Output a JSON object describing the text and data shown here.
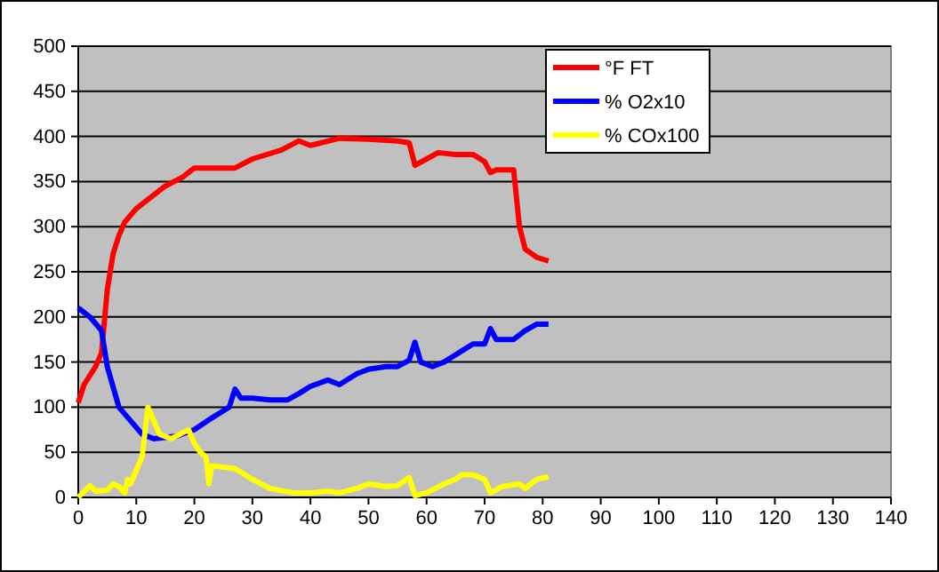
{
  "chart_data": {
    "type": "line",
    "xlim": [
      0,
      140
    ],
    "xticks": [
      0,
      10,
      20,
      30,
      40,
      50,
      60,
      70,
      80,
      90,
      100,
      110,
      120,
      130,
      140
    ],
    "ylim": [
      0,
      500
    ],
    "yticks": [
      0,
      50,
      100,
      150,
      200,
      250,
      300,
      350,
      400,
      450,
      500
    ],
    "grid": "y",
    "legend": "top",
    "marker": "none",
    "line_style": "solid",
    "series": [
      {
        "name": "°F FT",
        "color": "#ff0000",
        "x": [
          0,
          1,
          3,
          4,
          5,
          6,
          7,
          8,
          10,
          12,
          15,
          18,
          20,
          25,
          27,
          30,
          35,
          38,
          40,
          45,
          50,
          55,
          57,
          58,
          60,
          62,
          65,
          68,
          70,
          71,
          72,
          75,
          76,
          77,
          79,
          81
        ],
        "values": [
          105,
          125,
          145,
          160,
          230,
          270,
          290,
          305,
          320,
          330,
          345,
          355,
          365,
          365,
          365,
          375,
          385,
          395,
          390,
          398,
          397,
          395,
          393,
          368,
          375,
          382,
          380,
          380,
          372,
          360,
          363,
          363,
          300,
          275,
          266,
          262
        ]
      },
      {
        "name": "% O2x10",
        "color": "#0000ff",
        "x": [
          0,
          2,
          4,
          5,
          7,
          9,
          11,
          13,
          17,
          20,
          23,
          26,
          27,
          28,
          30,
          33,
          36,
          38,
          40,
          43,
          45,
          48,
          50,
          53,
          55,
          57,
          58,
          59,
          61,
          63,
          66,
          68,
          70,
          71,
          72,
          75,
          77,
          79,
          81
        ],
        "values": [
          210,
          200,
          185,
          145,
          100,
          85,
          70,
          65,
          68,
          75,
          88,
          100,
          120,
          110,
          110,
          108,
          108,
          115,
          123,
          130,
          125,
          137,
          142,
          145,
          145,
          152,
          172,
          150,
          145,
          150,
          162,
          170,
          170,
          187,
          175,
          175,
          185,
          192,
          192
        ]
      },
      {
        "name": "% COx100",
        "color": "#ffff00",
        "x": [
          0,
          2,
          3,
          5,
          6,
          7,
          8,
          8.5,
          9,
          10,
          11,
          12,
          13,
          14,
          16,
          19,
          20,
          21,
          22,
          22.5,
          23,
          27,
          28,
          30,
          33,
          37,
          40,
          43,
          45,
          48,
          50,
          53,
          55,
          57,
          58,
          60,
          63,
          65,
          66,
          68,
          70,
          71,
          73,
          76,
          77,
          79,
          81
        ],
        "values": [
          0,
          13,
          7,
          8,
          15,
          12,
          5,
          20,
          15,
          30,
          45,
          100,
          85,
          70,
          65,
          75,
          60,
          50,
          45,
          15,
          35,
          32,
          28,
          20,
          10,
          5,
          5,
          7,
          5,
          10,
          15,
          12,
          13,
          22,
          2,
          5,
          15,
          20,
          25,
          25,
          20,
          5,
          12,
          15,
          10,
          20,
          23
        ]
      }
    ]
  }
}
